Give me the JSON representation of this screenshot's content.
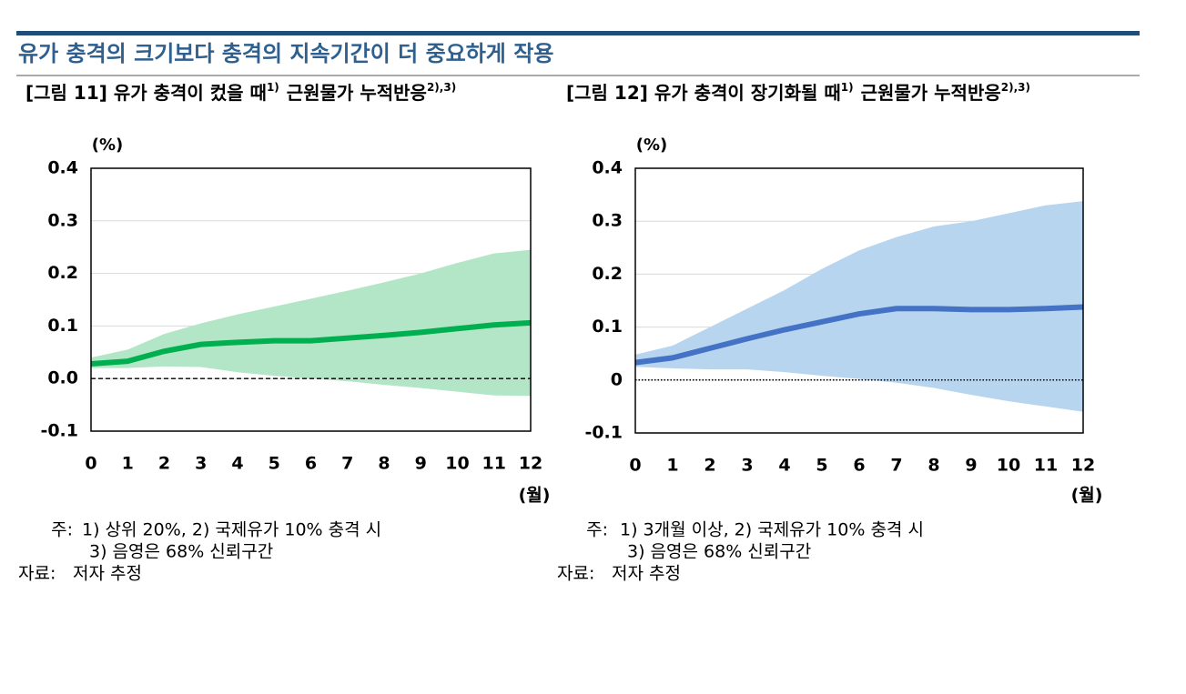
{
  "header": {
    "title": "유가 충격의 크기보다 충격의 지속기간이 더 중요하게 작용"
  },
  "chart_data": [
    {
      "type": "line",
      "title": "[그림 11] 유가 충격이 컸을 때",
      "title_note": "1)",
      "title2": "근원물가 누적반응",
      "title2_note": "2),3)",
      "ylabel": "(%)",
      "xlabel": "(월)",
      "x": [
        0,
        1,
        2,
        3,
        4,
        5,
        6,
        7,
        8,
        9,
        10,
        11,
        12
      ],
      "xlim": [
        0,
        12
      ],
      "xticks": [
        0,
        1,
        2,
        3,
        4,
        5,
        6,
        7,
        8,
        9,
        10,
        11,
        12
      ],
      "ylim": [
        -0.1,
        0.4
      ],
      "yticks": [
        -0.1,
        {
          "value": 0,
          "label": "0.0"
        },
        0.1,
        0.2,
        0.3,
        0.4
      ],
      "grid": true,
      "zero_line": "dashed",
      "series": [
        {
          "color": "#00b050",
          "values": [
            0.028,
            0.033,
            0.052,
            0.065,
            0.069,
            0.072,
            0.072,
            0.077,
            0.082,
            0.088,
            0.095,
            0.102,
            0.106
          ]
        }
      ],
      "band": {
        "color": "#b3e6c6",
        "upper": [
          0.04,
          0.055,
          0.085,
          0.105,
          0.122,
          0.137,
          0.152,
          0.167,
          0.183,
          0.2,
          0.22,
          0.238,
          0.245
        ],
        "lower": [
          0.02,
          0.02,
          0.023,
          0.022,
          0.012,
          0.005,
          0,
          -0.005,
          -0.012,
          -0.018,
          -0.025,
          -0.032,
          -0.033
        ]
      },
      "notes_label": "주:",
      "notes": [
        "1) 상위 20%, 2) 국제유가 10% 충격 시",
        "3) 음영은 68% 신뢰구간"
      ],
      "source_label": "자료:",
      "source": "저자 추정"
    },
    {
      "type": "line",
      "title": "[그림 12] 유가 충격이 장기화될 때",
      "title_note": "1)",
      "title2": "근원물가 누적반응",
      "title2_note": "2),3)",
      "ylabel": "(%)",
      "xlabel": "(월)",
      "x": [
        0,
        1,
        2,
        3,
        4,
        5,
        6,
        7,
        8,
        9,
        10,
        11,
        12
      ],
      "xlim": [
        0,
        12
      ],
      "xticks": [
        0,
        1,
        2,
        3,
        4,
        5,
        6,
        7,
        8,
        9,
        10,
        11,
        12
      ],
      "ylim": [
        -0.1,
        0.4
      ],
      "yticks": [
        -0.1,
        0,
        0.1,
        0.2,
        0.3,
        0.4
      ],
      "grid": true,
      "zero_line": "dotted",
      "series": [
        {
          "color": "#4472c4",
          "values": [
            0.033,
            0.042,
            0.06,
            0.078,
            0.095,
            0.11,
            0.125,
            0.135,
            0.135,
            0.133,
            0.133,
            0.135,
            0.138
          ]
        }
      ],
      "band": {
        "color": "#b7d5ee",
        "upper": [
          0.048,
          0.065,
          0.1,
          0.135,
          0.17,
          0.21,
          0.245,
          0.27,
          0.29,
          0.3,
          0.315,
          0.33,
          0.338
        ],
        "lower": [
          0.025,
          0.022,
          0.02,
          0.02,
          0.015,
          0.008,
          0.002,
          -0.005,
          -0.015,
          -0.028,
          -0.04,
          -0.05,
          -0.06
        ]
      },
      "notes_label": "주:",
      "notes": [
        "1) 3개월 이상, 2) 국제유가 10% 충격 시",
        "3) 음영은 68% 신뢰구간"
      ],
      "source_label": "자료:",
      "source": "저자 추정"
    }
  ]
}
